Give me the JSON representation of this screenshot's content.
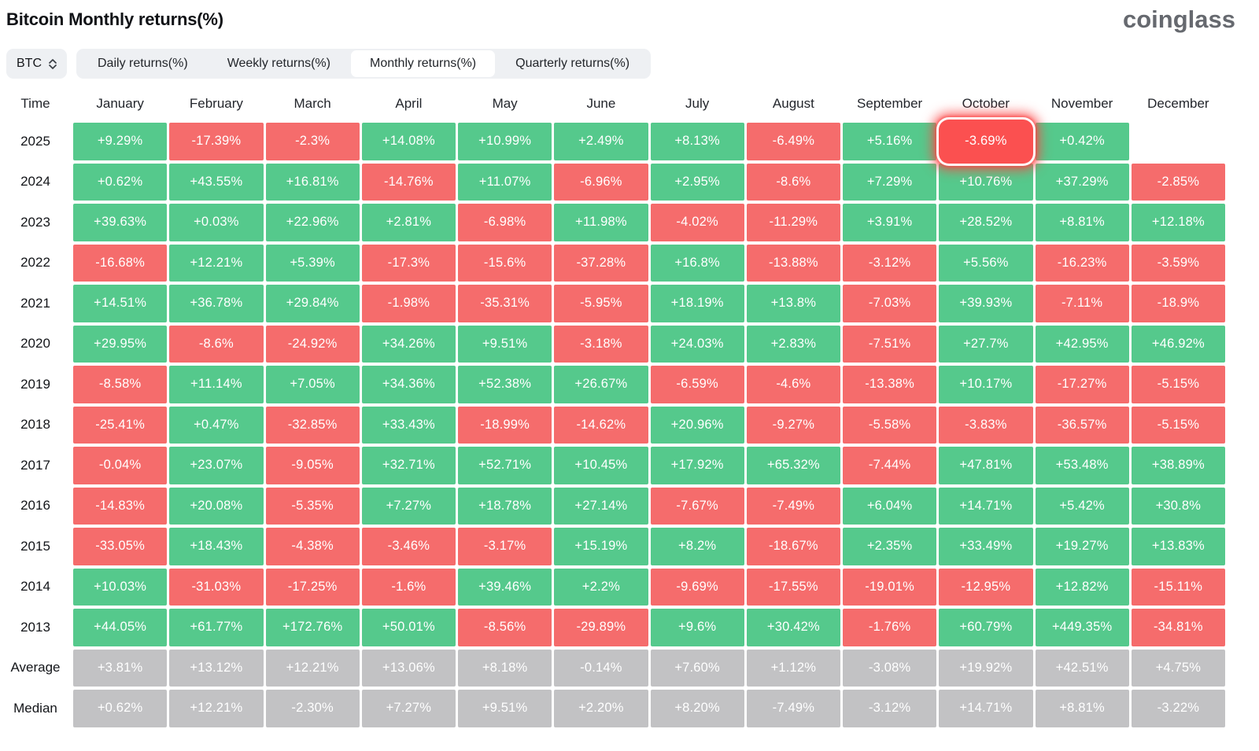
{
  "page": {
    "title": "Bitcoin Monthly returns(%)",
    "logo": "coinglass"
  },
  "controls": {
    "symbol": "BTC",
    "symbol_icon": "updown-chevron-icon",
    "tabs": [
      {
        "label": "Daily returns(%)",
        "active": false
      },
      {
        "label": "Weekly returns(%)",
        "active": false
      },
      {
        "label": "Monthly returns(%)",
        "active": true
      },
      {
        "label": "Quarterly returns(%)",
        "active": false
      }
    ]
  },
  "colors": {
    "positive": "#55c98c",
    "negative": "#f56c6c",
    "neutral": "#c2c2c4",
    "highlight": "#fb5050"
  },
  "chart_data": {
    "type": "heatmap",
    "title": "Bitcoin Monthly returns(%)",
    "columns": [
      "Time",
      "January",
      "February",
      "March",
      "April",
      "May",
      "June",
      "July",
      "August",
      "September",
      "October",
      "November",
      "December"
    ],
    "rows": [
      {
        "label": "2025",
        "style": "signed",
        "values": [
          "+9.29%",
          "-17.39%",
          "-2.3%",
          "+14.08%",
          "+10.99%",
          "+2.49%",
          "+8.13%",
          "-6.49%",
          "+5.16%",
          "-3.69%",
          "+0.42%",
          ""
        ]
      },
      {
        "label": "2024",
        "style": "signed",
        "values": [
          "+0.62%",
          "+43.55%",
          "+16.81%",
          "-14.76%",
          "+11.07%",
          "-6.96%",
          "+2.95%",
          "-8.6%",
          "+7.29%",
          "+10.76%",
          "+37.29%",
          "-2.85%"
        ]
      },
      {
        "label": "2023",
        "style": "signed",
        "values": [
          "+39.63%",
          "+0.03%",
          "+22.96%",
          "+2.81%",
          "-6.98%",
          "+11.98%",
          "-4.02%",
          "-11.29%",
          "+3.91%",
          "+28.52%",
          "+8.81%",
          "+12.18%"
        ]
      },
      {
        "label": "2022",
        "style": "signed",
        "values": [
          "-16.68%",
          "+12.21%",
          "+5.39%",
          "-17.3%",
          "-15.6%",
          "-37.28%",
          "+16.8%",
          "-13.88%",
          "-3.12%",
          "+5.56%",
          "-16.23%",
          "-3.59%"
        ]
      },
      {
        "label": "2021",
        "style": "signed",
        "values": [
          "+14.51%",
          "+36.78%",
          "+29.84%",
          "-1.98%",
          "-35.31%",
          "-5.95%",
          "+18.19%",
          "+13.8%",
          "-7.03%",
          "+39.93%",
          "-7.11%",
          "-18.9%"
        ]
      },
      {
        "label": "2020",
        "style": "signed",
        "values": [
          "+29.95%",
          "-8.6%",
          "-24.92%",
          "+34.26%",
          "+9.51%",
          "-3.18%",
          "+24.03%",
          "+2.83%",
          "-7.51%",
          "+27.7%",
          "+42.95%",
          "+46.92%"
        ]
      },
      {
        "label": "2019",
        "style": "signed",
        "values": [
          "-8.58%",
          "+11.14%",
          "+7.05%",
          "+34.36%",
          "+52.38%",
          "+26.67%",
          "-6.59%",
          "-4.6%",
          "-13.38%",
          "+10.17%",
          "-17.27%",
          "-5.15%"
        ]
      },
      {
        "label": "2018",
        "style": "signed",
        "values": [
          "-25.41%",
          "+0.47%",
          "-32.85%",
          "+33.43%",
          "-18.99%",
          "-14.62%",
          "+20.96%",
          "-9.27%",
          "-5.58%",
          "-3.83%",
          "-36.57%",
          "-5.15%"
        ]
      },
      {
        "label": "2017",
        "style": "signed",
        "values": [
          "-0.04%",
          "+23.07%",
          "-9.05%",
          "+32.71%",
          "+52.71%",
          "+10.45%",
          "+17.92%",
          "+65.32%",
          "-7.44%",
          "+47.81%",
          "+53.48%",
          "+38.89%"
        ]
      },
      {
        "label": "2016",
        "style": "signed",
        "values": [
          "-14.83%",
          "+20.08%",
          "-5.35%",
          "+7.27%",
          "+18.78%",
          "+27.14%",
          "-7.67%",
          "-7.49%",
          "+6.04%",
          "+14.71%",
          "+5.42%",
          "+30.8%"
        ]
      },
      {
        "label": "2015",
        "style": "signed",
        "values": [
          "-33.05%",
          "+18.43%",
          "-4.38%",
          "-3.46%",
          "-3.17%",
          "+15.19%",
          "+8.2%",
          "-18.67%",
          "+2.35%",
          "+33.49%",
          "+19.27%",
          "+13.83%"
        ]
      },
      {
        "label": "2014",
        "style": "signed",
        "values": [
          "+10.03%",
          "-31.03%",
          "-17.25%",
          "-1.6%",
          "+39.46%",
          "+2.2%",
          "-9.69%",
          "-17.55%",
          "-19.01%",
          "-12.95%",
          "+12.82%",
          "-15.11%"
        ]
      },
      {
        "label": "2013",
        "style": "signed",
        "values": [
          "+44.05%",
          "+61.77%",
          "+172.76%",
          "+50.01%",
          "-8.56%",
          "-29.89%",
          "+9.6%",
          "+30.42%",
          "-1.76%",
          "+60.79%",
          "+449.35%",
          "-34.81%"
        ]
      },
      {
        "label": "Average",
        "style": "neutral",
        "values": [
          "+3.81%",
          "+13.12%",
          "+12.21%",
          "+13.06%",
          "+8.18%",
          "-0.14%",
          "+7.60%",
          "+1.12%",
          "-3.08%",
          "+19.92%",
          "+42.51%",
          "+4.75%"
        ]
      },
      {
        "label": "Median",
        "style": "neutral",
        "values": [
          "+0.62%",
          "+12.21%",
          "-2.30%",
          "+7.27%",
          "+9.51%",
          "+2.20%",
          "+8.20%",
          "-7.49%",
          "-3.12%",
          "+14.71%",
          "+8.81%",
          "-3.22%"
        ]
      }
    ],
    "highlight_cell": {
      "row_label": "2025",
      "column": "October",
      "value": "-3.69%"
    },
    "legend_position": "none",
    "grid": false
  }
}
